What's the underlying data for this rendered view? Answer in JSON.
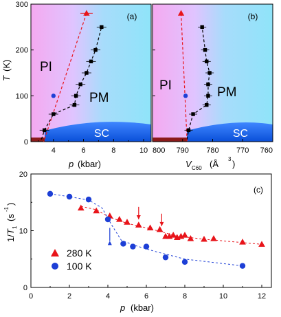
{
  "chart_data": [
    {
      "panel": "a",
      "type": "scatter",
      "panel_label": "(a)",
      "xlabel": "p",
      "xunit": "(kbar)",
      "ylabel": "T",
      "yunit": "(K)",
      "xlim": [
        2.5,
        10.5
      ],
      "ylim": [
        0,
        300
      ],
      "xticks": [
        "4",
        "6",
        "8",
        "10"
      ],
      "yticks": [
        "0",
        "100",
        "200",
        "300"
      ],
      "regions": [
        "PI",
        "PM",
        "SC"
      ],
      "series": [
        {
          "marker": "square",
          "color": "#000000",
          "points": [
            [
              3.4,
              25
            ],
            [
              4.0,
              60
            ],
            [
              5.4,
              80
            ],
            [
              5.5,
              100
            ],
            [
              5.8,
              125
            ],
            [
              6.2,
              150
            ],
            [
              6.5,
              175
            ],
            [
              6.8,
              200
            ],
            [
              7.2,
              250
            ]
          ]
        },
        {
          "marker": "triangle",
          "color": "#e8141a",
          "points": [
            [
              6.2,
              280
            ]
          ]
        },
        {
          "marker": "circle",
          "color": "#1d3fd6",
          "points": [
            [
              4.0,
              100
            ]
          ]
        }
      ]
    },
    {
      "panel": "b",
      "type": "scatter",
      "panel_label": "(b)",
      "xlabel": "V",
      "xsub": "C60",
      "xunit": "(Å",
      "xsup": "3",
      "xunit_close": ")",
      "xlim": [
        800,
        760
      ],
      "ylim": [
        0,
        300
      ],
      "xticks": [
        "800",
        "790",
        "780",
        "770",
        "760"
      ],
      "regions": [
        "PI",
        "PM",
        "SC"
      ],
      "series": [
        {
          "marker": "square",
          "color": "#000000",
          "points": [
            [
              788.0,
              25
            ],
            [
              786.5,
              60
            ],
            [
              782.0,
              80
            ],
            [
              781.5,
              100
            ],
            [
              781.5,
              125
            ],
            [
              781.0,
              150
            ],
            [
              782.0,
              175
            ],
            [
              782.5,
              200
            ],
            [
              783.5,
              250
            ]
          ]
        },
        {
          "marker": "triangle",
          "color": "#e8141a",
          "points": [
            [
              790.5,
              280
            ]
          ]
        },
        {
          "marker": "circle",
          "color": "#1d3fd6",
          "points": [
            [
              789.0,
              100
            ]
          ]
        }
      ]
    },
    {
      "panel": "c",
      "type": "scatter",
      "panel_label": "(c)",
      "xlabel": "p",
      "xunit": "(kbar)",
      "ylabel": "1/T",
      "ysub": "1",
      "yunit": "(s",
      "ysup": "-1",
      "yunit_close": ")",
      "xlim": [
        0,
        12.5
      ],
      "ylim": [
        0,
        20
      ],
      "xticks": [
        "0",
        "2",
        "4",
        "6",
        "8",
        "10",
        "12"
      ],
      "yticks": [
        "0",
        "10",
        "20"
      ],
      "legend": "bottom-left",
      "series": [
        {
          "name": "280 K",
          "marker": "triangle",
          "color": "#e8141a",
          "points": [
            [
              2.6,
              14.0
            ],
            [
              3.4,
              13.5
            ],
            [
              4.1,
              12.6
            ],
            [
              4.6,
              12.0
            ],
            [
              5.0,
              11.5
            ],
            [
              5.6,
              11.0
            ],
            [
              6.2,
              10.5
            ],
            [
              6.7,
              10.2
            ],
            [
              7.0,
              9.0
            ],
            [
              7.2,
              9.0
            ],
            [
              7.4,
              9.2
            ],
            [
              7.6,
              8.8
            ],
            [
              7.8,
              9.0
            ],
            [
              8.0,
              9.2
            ],
            [
              8.3,
              8.6
            ],
            [
              9.0,
              8.5
            ],
            [
              9.5,
              8.6
            ],
            [
              11.0,
              8.0
            ],
            [
              12.0,
              7.6
            ]
          ]
        },
        {
          "name": "100 K",
          "marker": "circle",
          "color": "#1d3fd6",
          "points": [
            [
              1.0,
              16.5
            ],
            [
              2.0,
              16.0
            ],
            [
              3.0,
              15.5
            ],
            [
              4.0,
              12.0
            ],
            [
              4.8,
              7.7
            ],
            [
              5.3,
              7.2
            ],
            [
              6.0,
              7.2
            ],
            [
              7.0,
              5.3
            ],
            [
              8.0,
              4.5
            ],
            [
              11.0,
              3.8
            ]
          ]
        }
      ]
    }
  ]
}
